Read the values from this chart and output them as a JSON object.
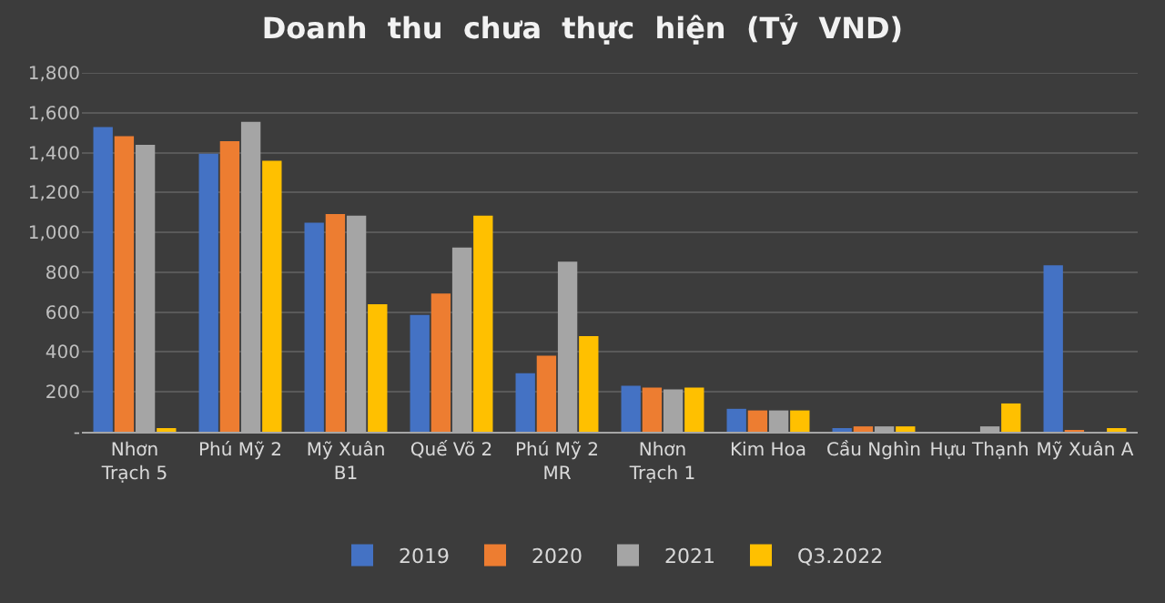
{
  "chart_data": {
    "type": "bar",
    "title": "Doanh  thu  chưa  thực  hiện  (Tỷ  VND)",
    "categories": [
      "Nhơn Trạch 5",
      "Phú Mỹ 2",
      "Mỹ Xuân B1",
      "Quế Võ 2",
      "Phú Mỹ 2 MR",
      "Nhơn Trạch 1",
      "Kim Hoa",
      "Cầu Nghìn",
      "Hựu Thạnh",
      "Mỹ Xuân A"
    ],
    "series": [
      {
        "name": "2019",
        "color": "#4472c4",
        "values": [
          1528,
          1394,
          1048,
          586,
          293,
          231,
          115,
          18,
          0,
          835
        ]
      },
      {
        "name": "2020",
        "color": "#ed7d31",
        "values": [
          1483,
          1457,
          1092,
          693,
          382,
          222,
          107,
          27,
          0,
          9
        ]
      },
      {
        "name": "2021",
        "color": "#a5a5a5",
        "values": [
          1439,
          1554,
          1084,
          924,
          853,
          213,
          107,
          27,
          27,
          0
        ]
      },
      {
        "name": "Q3.2022",
        "color": "#ffc000",
        "values": [
          12,
          1359,
          640,
          1084,
          480,
          222,
          107,
          27,
          142,
          18
        ]
      }
    ],
    "ylim": [
      0,
      1800
    ],
    "yticks": [
      {
        "value": 0,
        "label": "-"
      },
      200,
      400,
      600,
      800,
      {
        "value": 1000,
        "label": "1,000"
      },
      {
        "value": 1200,
        "label": "1,200"
      },
      {
        "value": 1400,
        "label": "1,400"
      },
      {
        "value": 1600,
        "label": "1,600"
      },
      {
        "value": 1800,
        "label": "1,800"
      }
    ],
    "grid": "y",
    "legend": "bottom"
  }
}
